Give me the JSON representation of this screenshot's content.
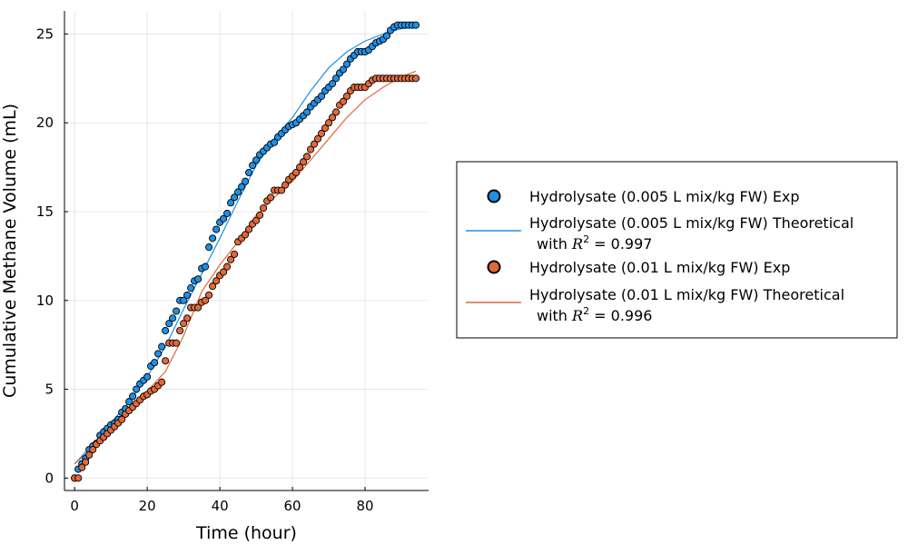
{
  "chart_data": {
    "type": "scatter",
    "xlabel": "Time (hour)",
    "ylabel": "Cumulative Methane Volume (mL)",
    "xlim": [
      -2.8,
      97.5
    ],
    "ylim": [
      -0.7,
      26.3
    ],
    "xticks": [
      0,
      20,
      40,
      60,
      80
    ],
    "yticks": [
      0,
      5,
      10,
      15,
      20,
      25
    ],
    "grid": true,
    "legend_position": "outside-right",
    "series": [
      {
        "name": "Hydrolysate (0.005 L mix/kg FW) Exp",
        "kind": "scatter",
        "color": "#1e90e6",
        "x": [
          0,
          1,
          2,
          3,
          4,
          5,
          6,
          7,
          8,
          9,
          10,
          11,
          12,
          13,
          14,
          15,
          16,
          17,
          18,
          19,
          20,
          21,
          22,
          23,
          24,
          25,
          26,
          27,
          28,
          29,
          30,
          31,
          32,
          33,
          34,
          35,
          36,
          37,
          38,
          39,
          40,
          41,
          42,
          43,
          44,
          45,
          46,
          47,
          48,
          49,
          50,
          51,
          52,
          53,
          54,
          55,
          56,
          57,
          58,
          59,
          60,
          61,
          62,
          63,
          64,
          65,
          66,
          67,
          68,
          69,
          70,
          71,
          72,
          73,
          74,
          75,
          76,
          77,
          78,
          79,
          80,
          81,
          82,
          83,
          84,
          85,
          86,
          87,
          88,
          89,
          90,
          91,
          92,
          93,
          94
        ],
        "y": [
          0,
          0.5,
          0.8,
          1.1,
          1.6,
          1.8,
          1.95,
          2.4,
          2.6,
          2.8,
          3.0,
          3.1,
          3.3,
          3.7,
          3.9,
          4.3,
          4.6,
          5.0,
          5.3,
          5.5,
          5.7,
          6.3,
          6.5,
          7.0,
          7.4,
          8.3,
          8.7,
          9.0,
          9.4,
          10.0,
          10.0,
          10.3,
          10.7,
          11.1,
          11.2,
          11.8,
          11.9,
          13.0,
          13.5,
          14.0,
          14.4,
          14.6,
          14.9,
          15.5,
          15.8,
          16.1,
          16.4,
          16.7,
          17.2,
          17.6,
          17.9,
          18.2,
          18.4,
          18.6,
          18.8,
          18.9,
          19.2,
          19.4,
          19.6,
          19.8,
          19.9,
          20.0,
          20.2,
          20.4,
          20.6,
          20.9,
          21.1,
          21.3,
          21.5,
          21.8,
          22.0,
          22.2,
          22.5,
          22.8,
          23.0,
          23.3,
          23.6,
          23.8,
          24.0,
          24.0,
          24.0,
          24.1,
          24.3,
          24.5,
          24.6,
          24.7,
          24.9,
          25.2,
          25.4,
          25.5,
          25.5,
          25.5,
          25.5,
          25.5,
          25.5
        ]
      },
      {
        "name": "Hydrolysate (0.005 L mix/kg FW) Theoretical\n with R² = 0.997",
        "legend_label": "Hydrolysate (0.005 L mix/kg FW) Theoretical",
        "legend_r2_line": "with",
        "legend_r2_symbol": "R",
        "legend_r2_exp": "2",
        "legend_r2_eq": "=",
        "legend_r2_value": "0.997",
        "kind": "line",
        "color": "#1e90e6",
        "x": [
          0,
          5,
          10,
          15,
          20,
          25,
          30,
          35,
          40,
          45,
          50,
          55,
          60,
          65,
          70,
          75,
          80,
          85,
          90,
          94
        ],
        "y": [
          0.8,
          1.9,
          3.1,
          4.3,
          5.7,
          7.4,
          9.5,
          11.5,
          13.5,
          15.6,
          17.6,
          19.1,
          20.3,
          21.8,
          23.1,
          24.0,
          24.6,
          25.0,
          25.3,
          25.4
        ]
      },
      {
        "name": "Hydrolysate (0.01 L mix/kg FW) Exp",
        "kind": "scatter",
        "color": "#e0693a",
        "x": [
          0,
          1,
          2,
          3,
          4,
          5,
          6,
          7,
          8,
          9,
          10,
          11,
          12,
          13,
          14,
          15,
          16,
          17,
          18,
          19,
          20,
          21,
          22,
          23,
          24,
          25,
          26,
          27,
          28,
          29,
          30,
          31,
          32,
          33,
          34,
          35,
          36,
          37,
          38,
          39,
          40,
          41,
          42,
          43,
          44,
          45,
          46,
          47,
          48,
          49,
          50,
          51,
          52,
          53,
          54,
          55,
          56,
          57,
          58,
          59,
          60,
          61,
          62,
          63,
          64,
          65,
          66,
          67,
          68,
          69,
          70,
          71,
          72,
          73,
          74,
          75,
          76,
          77,
          78,
          79,
          80,
          81,
          82,
          83,
          84,
          85,
          86,
          87,
          88,
          89,
          90,
          91,
          92,
          93,
          94
        ],
        "y": [
          0,
          0,
          0.6,
          0.9,
          1.3,
          1.6,
          1.9,
          2.1,
          2.3,
          2.5,
          2.7,
          2.9,
          3.1,
          3.3,
          3.6,
          3.8,
          4.0,
          4.2,
          4.4,
          4.6,
          4.7,
          4.9,
          5.0,
          5.2,
          5.4,
          6.6,
          7.6,
          7.6,
          7.6,
          8.3,
          8.7,
          9.0,
          9.6,
          9.6,
          9.6,
          9.9,
          10.0,
          10.3,
          10.8,
          11.1,
          11.4,
          11.6,
          11.9,
          12.3,
          12.6,
          13.3,
          13.5,
          13.7,
          14.0,
          14.3,
          14.5,
          14.8,
          15.2,
          15.6,
          15.8,
          16.2,
          16.2,
          16.2,
          16.5,
          16.8,
          17.0,
          17.2,
          17.5,
          17.8,
          18.1,
          18.5,
          18.8,
          19.1,
          19.4,
          19.7,
          20.0,
          20.3,
          20.6,
          21.0,
          21.2,
          21.5,
          21.8,
          22.0,
          22.0,
          22.0,
          22.0,
          22.2,
          22.4,
          22.5,
          22.5,
          22.5,
          22.5,
          22.5,
          22.5,
          22.5,
          22.5,
          22.5,
          22.5,
          22.5,
          22.5
        ]
      },
      {
        "name": "Hydrolysate (0.01 L mix/kg FW) Theoretical\n with R² = 0.996",
        "legend_label": "Hydrolysate (0.01 L mix/kg FW) Theoretical",
        "legend_r2_line": "with",
        "legend_r2_symbol": "R",
        "legend_r2_exp": "2",
        "legend_r2_eq": "=",
        "legend_r2_value": "0.996",
        "kind": "line",
        "color": "#e0693a",
        "x": [
          0,
          5,
          10,
          15,
          20,
          25,
          30,
          35,
          40,
          45,
          50,
          55,
          60,
          65,
          70,
          75,
          80,
          85,
          90,
          94
        ],
        "y": [
          0.8,
          1.7,
          2.7,
          3.8,
          4.9,
          6.0,
          8.0,
          10.5,
          12.0,
          13.3,
          14.8,
          15.8,
          16.7,
          17.9,
          19.1,
          20.3,
          21.3,
          22.0,
          22.6,
          22.9
        ]
      }
    ]
  }
}
